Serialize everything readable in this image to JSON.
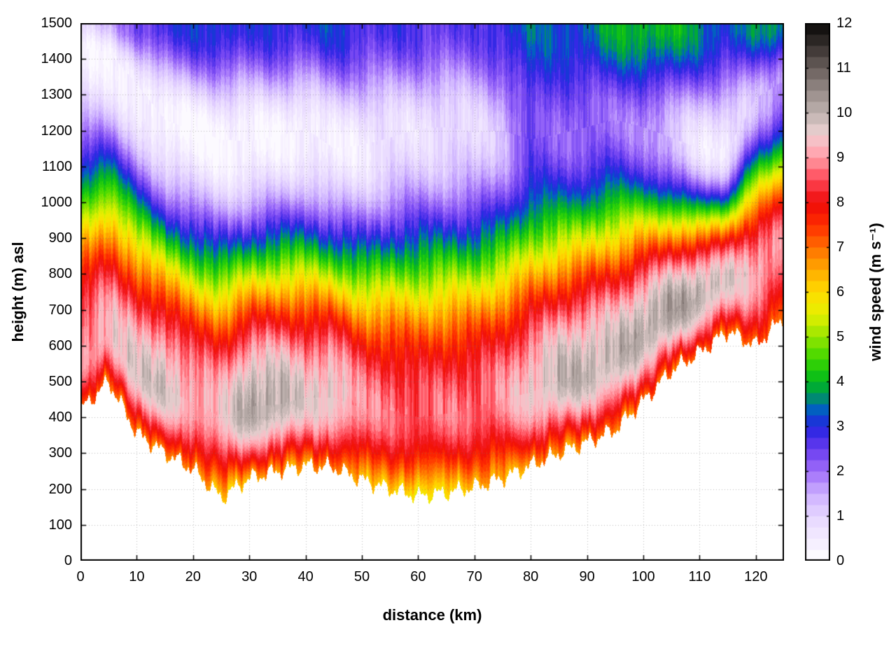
{
  "chart_data": {
    "type": "heatmap",
    "title": "",
    "xlabel": "distance (km)",
    "ylabel": "height (m) asl",
    "colorbar_label": "wind speed (m s⁻¹)",
    "x_range": [
      0,
      125
    ],
    "y_range": [
      0,
      1500
    ],
    "z_range": [
      0,
      12
    ],
    "contour_interval": 0.25,
    "grid": true,
    "legend_position": "right-colorbar",
    "x_ticks": [
      0,
      10,
      20,
      30,
      40,
      50,
      60,
      70,
      80,
      90,
      100,
      110,
      120
    ],
    "y_ticks": [
      0,
      100,
      200,
      300,
      400,
      500,
      600,
      700,
      800,
      900,
      1000,
      1100,
      1200,
      1300,
      1400,
      1500
    ],
    "colorbar_ticks": [
      0,
      1,
      2,
      3,
      4,
      5,
      6,
      7,
      8,
      9,
      10,
      11,
      12
    ],
    "palette": [
      {
        "v": 0.0,
        "c": "#ffffff"
      },
      {
        "v": 0.5,
        "c": "#f4ecff"
      },
      {
        "v": 1.0,
        "c": "#e6d6ff"
      },
      {
        "v": 1.5,
        "c": "#cdb0ff"
      },
      {
        "v": 2.0,
        "c": "#a06efa"
      },
      {
        "v": 2.5,
        "c": "#693cf0"
      },
      {
        "v": 3.0,
        "c": "#2323e1"
      },
      {
        "v": 3.4,
        "c": "#0064be"
      },
      {
        "v": 3.7,
        "c": "#00965a"
      },
      {
        "v": 4.0,
        "c": "#00b91e"
      },
      {
        "v": 4.5,
        "c": "#3cd700"
      },
      {
        "v": 5.0,
        "c": "#96e600"
      },
      {
        "v": 5.5,
        "c": "#e6f000"
      },
      {
        "v": 6.0,
        "c": "#ffdc00"
      },
      {
        "v": 6.5,
        "c": "#ffaa00"
      },
      {
        "v": 7.0,
        "c": "#ff6e00"
      },
      {
        "v": 7.5,
        "c": "#ff2d00"
      },
      {
        "v": 8.0,
        "c": "#ee0a0a"
      },
      {
        "v": 8.5,
        "c": "#ff4655"
      },
      {
        "v": 8.9,
        "c": "#ff8c96"
      },
      {
        "v": 9.25,
        "c": "#ffb9c3"
      },
      {
        "v": 9.6,
        "c": "#e6cdcd"
      },
      {
        "v": 10.0,
        "c": "#beb2af"
      },
      {
        "v": 10.5,
        "c": "#968a87"
      },
      {
        "v": 11.0,
        "c": "#695f5c"
      },
      {
        "v": 11.5,
        "c": "#37302e"
      },
      {
        "v": 12.0,
        "c": "#0a0808"
      }
    ],
    "columns": [
      {
        "x_km": 0,
        "terrain_m": 420,
        "surface_speed": 7.0,
        "jet_height_m": 560,
        "jet_speed": 9.0,
        "min_height_m": 1430,
        "min_speed": 0.4,
        "top_speed": 0.9
      },
      {
        "x_km": 5,
        "terrain_m": 500,
        "surface_speed": 7.0,
        "jet_height_m": 630,
        "jet_speed": 9.3,
        "min_height_m": 1420,
        "min_speed": 0.3,
        "top_speed": 1.2
      },
      {
        "x_km": 10,
        "terrain_m": 355,
        "surface_speed": 7.0,
        "jet_height_m": 520,
        "jet_speed": 9.6,
        "min_height_m": 1330,
        "min_speed": 0.3,
        "top_speed": 2.6
      },
      {
        "x_km": 15,
        "terrain_m": 300,
        "surface_speed": 6.8,
        "jet_height_m": 480,
        "jet_speed": 9.8,
        "min_height_m": 1230,
        "min_speed": 0.2,
        "top_speed": 2.8
      },
      {
        "x_km": 20,
        "terrain_m": 255,
        "surface_speed": 6.6,
        "jet_height_m": 440,
        "jet_speed": 9.2,
        "min_height_m": 1200,
        "min_speed": 0.2,
        "top_speed": 3.0
      },
      {
        "x_km": 25,
        "terrain_m": 175,
        "surface_speed": 6.0,
        "jet_height_m": 400,
        "jet_speed": 9.3,
        "min_height_m": 1175,
        "min_speed": 0.2,
        "top_speed": 3.2
      },
      {
        "x_km": 30,
        "terrain_m": 230,
        "surface_speed": 6.4,
        "jet_height_m": 430,
        "jet_speed": 10.2,
        "min_height_m": 1170,
        "min_speed": 0.2,
        "top_speed": 2.8
      },
      {
        "x_km": 35,
        "terrain_m": 250,
        "surface_speed": 6.5,
        "jet_height_m": 435,
        "jet_speed": 10.1,
        "min_height_m": 1185,
        "min_speed": 0.3,
        "top_speed": 3.0
      },
      {
        "x_km": 40,
        "terrain_m": 265,
        "surface_speed": 6.6,
        "jet_height_m": 455,
        "jet_speed": 9.5,
        "min_height_m": 1205,
        "min_speed": 0.3,
        "top_speed": 2.9
      },
      {
        "x_km": 45,
        "terrain_m": 260,
        "surface_speed": 6.7,
        "jet_height_m": 455,
        "jet_speed": 9.7,
        "min_height_m": 1150,
        "min_speed": 0.4,
        "top_speed": 3.1
      },
      {
        "x_km": 50,
        "terrain_m": 225,
        "surface_speed": 6.3,
        "jet_height_m": 425,
        "jet_speed": 8.9,
        "min_height_m": 1160,
        "min_speed": 0.5,
        "top_speed": 2.8
      },
      {
        "x_km": 55,
        "terrain_m": 200,
        "surface_speed": 6.2,
        "jet_height_m": 420,
        "jet_speed": 8.7,
        "min_height_m": 1180,
        "min_speed": 0.7,
        "top_speed": 2.7
      },
      {
        "x_km": 60,
        "terrain_m": 180,
        "surface_speed": 5.4,
        "jet_height_m": 400,
        "jet_speed": 8.6,
        "min_height_m": 1205,
        "min_speed": 0.8,
        "top_speed": 2.7
      },
      {
        "x_km": 65,
        "terrain_m": 190,
        "surface_speed": 6.0,
        "jet_height_m": 410,
        "jet_speed": 8.7,
        "min_height_m": 1210,
        "min_speed": 0.8,
        "top_speed": 2.6
      },
      {
        "x_km": 70,
        "terrain_m": 205,
        "surface_speed": 6.2,
        "jet_height_m": 430,
        "jet_speed": 8.7,
        "min_height_m": 1195,
        "min_speed": 0.9,
        "top_speed": 2.5
      },
      {
        "x_km": 75,
        "terrain_m": 230,
        "surface_speed": 6.4,
        "jet_height_m": 450,
        "jet_speed": 8.9,
        "min_height_m": 1200,
        "min_speed": 1.3,
        "top_speed": 3.0
      },
      {
        "x_km": 80,
        "terrain_m": 265,
        "surface_speed": 6.5,
        "jet_height_m": 470,
        "jet_speed": 9.5,
        "min_height_m": 1175,
        "min_speed": 2.4,
        "top_speed": 3.4
      },
      {
        "x_km": 85,
        "terrain_m": 300,
        "surface_speed": 6.6,
        "jet_height_m": 500,
        "jet_speed": 9.9,
        "min_height_m": 1190,
        "min_speed": 2.2,
        "top_speed": 3.2
      },
      {
        "x_km": 90,
        "terrain_m": 330,
        "surface_speed": 6.7,
        "jet_height_m": 530,
        "jet_speed": 10.0,
        "min_height_m": 1210,
        "min_speed": 2.0,
        "top_speed": 3.4
      },
      {
        "x_km": 95,
        "terrain_m": 365,
        "surface_speed": 6.8,
        "jet_height_m": 560,
        "jet_speed": 9.9,
        "min_height_m": 1230,
        "min_speed": 2.1,
        "top_speed": 3.9
      },
      {
        "x_km": 100,
        "terrain_m": 445,
        "surface_speed": 6.9,
        "jet_height_m": 640,
        "jet_speed": 10.1,
        "min_height_m": 1210,
        "min_speed": 1.8,
        "top_speed": 4.1
      },
      {
        "x_km": 105,
        "terrain_m": 530,
        "surface_speed": 7.0,
        "jet_height_m": 700,
        "jet_speed": 10.2,
        "min_height_m": 1180,
        "min_speed": 1.2,
        "top_speed": 4.0
      },
      {
        "x_km": 110,
        "terrain_m": 580,
        "surface_speed": 7.0,
        "jet_height_m": 740,
        "jet_speed": 10.1,
        "min_height_m": 1150,
        "min_speed": 0.6,
        "top_speed": 3.6
      },
      {
        "x_km": 115,
        "terrain_m": 640,
        "surface_speed": 7.0,
        "jet_height_m": 780,
        "jet_speed": 9.6,
        "min_height_m": 1150,
        "min_speed": 0.5,
        "top_speed": 3.2
      },
      {
        "x_km": 120,
        "terrain_m": 600,
        "surface_speed": 7.0,
        "jet_height_m": 800,
        "jet_speed": 9.2,
        "min_height_m": 1290,
        "min_speed": 1.4,
        "top_speed": 3.6
      },
      {
        "x_km": 125,
        "terrain_m": 680,
        "surface_speed": 7.0,
        "jet_height_m": 880,
        "jet_speed": 8.8,
        "min_height_m": 1340,
        "min_speed": 1.6,
        "top_speed": 3.8
      }
    ]
  }
}
